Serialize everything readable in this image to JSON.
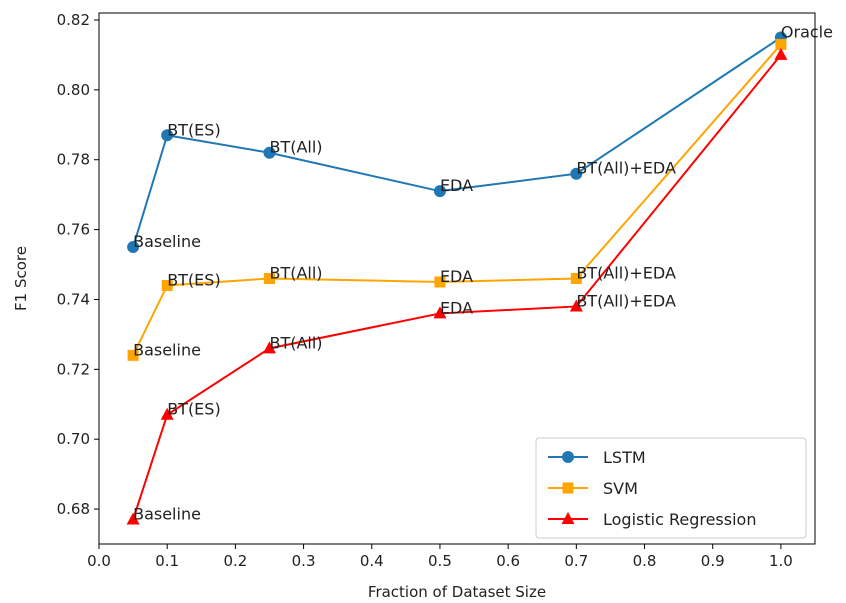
{
  "chart_data": {
    "type": "line",
    "title": "",
    "xlabel": "Fraction of Dataset Size",
    "ylabel": "F1 Score",
    "xlim": [
      0.0,
      1.05
    ],
    "ylim": [
      0.67,
      0.822
    ],
    "xticks": [
      0.0,
      0.1,
      0.2,
      0.3,
      0.4,
      0.5,
      0.6,
      0.7,
      0.8,
      0.9,
      1.0
    ],
    "xtick_labels": [
      "0.0",
      "0.1",
      "0.2",
      "0.3",
      "0.4",
      "0.5",
      "0.6",
      "0.7",
      "0.8",
      "0.9",
      "1.0"
    ],
    "yticks": [
      0.68,
      0.7,
      0.72,
      0.74,
      0.76,
      0.78,
      0.8,
      0.82
    ],
    "ytick_labels": [
      "0.68",
      "0.70",
      "0.72",
      "0.74",
      "0.76",
      "0.78",
      "0.80",
      "0.82"
    ],
    "grid": false,
    "legend_position": "bottom-right",
    "series": [
      {
        "name": "LSTM",
        "color": "#1f77b4",
        "marker": "circle",
        "points": [
          {
            "x": 0.05,
            "y": 0.755,
            "label": "Baseline"
          },
          {
            "x": 0.1,
            "y": 0.787,
            "label": "BT(ES)"
          },
          {
            "x": 0.25,
            "y": 0.782,
            "label": "BT(All)"
          },
          {
            "x": 0.5,
            "y": 0.771,
            "label": "EDA"
          },
          {
            "x": 0.7,
            "y": 0.776,
            "label": "BT(All)+EDA"
          },
          {
            "x": 1.0,
            "y": 0.815,
            "label": "Oracle"
          }
        ]
      },
      {
        "name": "SVM",
        "color": "#ffa500",
        "marker": "square",
        "points": [
          {
            "x": 0.05,
            "y": 0.724,
            "label": "Baseline"
          },
          {
            "x": 0.1,
            "y": 0.744,
            "label": "BT(ES)"
          },
          {
            "x": 0.25,
            "y": 0.746,
            "label": "BT(All)"
          },
          {
            "x": 0.5,
            "y": 0.745,
            "label": "EDA"
          },
          {
            "x": 0.7,
            "y": 0.746,
            "label": "BT(All)+EDA"
          },
          {
            "x": 1.0,
            "y": 0.813,
            "label": ""
          }
        ]
      },
      {
        "name": "Logistic Regression",
        "color": "#ff0000",
        "marker": "triangle",
        "points": [
          {
            "x": 0.05,
            "y": 0.677,
            "label": "Baseline"
          },
          {
            "x": 0.1,
            "y": 0.707,
            "label": "BT(ES)"
          },
          {
            "x": 0.25,
            "y": 0.726,
            "label": "BT(All)"
          },
          {
            "x": 0.5,
            "y": 0.736,
            "label": "EDA"
          },
          {
            "x": 0.7,
            "y": 0.738,
            "label": "BT(All)+EDA"
          },
          {
            "x": 1.0,
            "y": 0.81,
            "label": ""
          }
        ]
      }
    ]
  }
}
